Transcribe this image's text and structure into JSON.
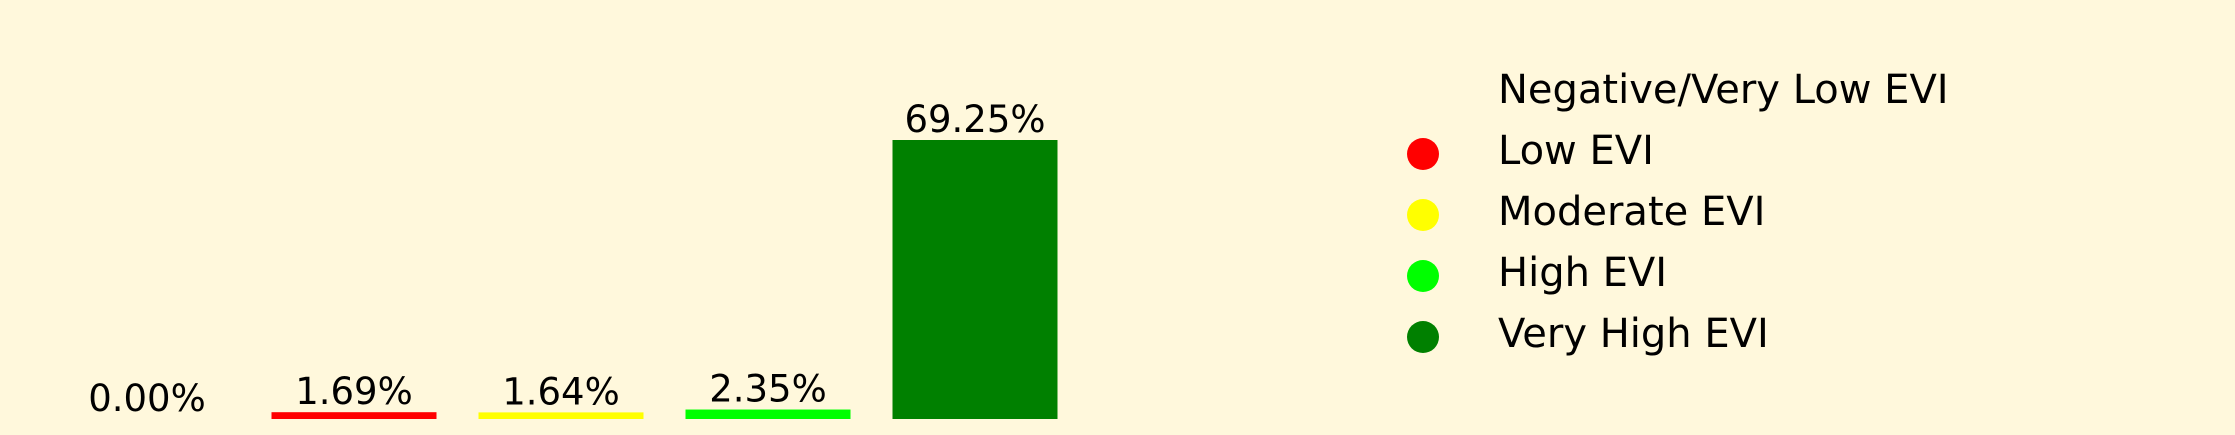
{
  "chart_data": {
    "type": "bar",
    "title": "",
    "xlabel": "",
    "ylabel": "",
    "ylim": [
      0,
      69.25
    ],
    "grid": false,
    "legend_placement": "right",
    "categories": [
      "Negative/Very Low EVI",
      "Low EVI",
      "Moderate EVI",
      "High EVI",
      "Very High EVI"
    ],
    "values": [
      0.0,
      1.69,
      1.64,
      2.35,
      69.25
    ],
    "value_labels": [
      "0.00%",
      "1.69%",
      "1.64%",
      "2.35%",
      "69.25%"
    ],
    "colors": [
      "#FFF8DC",
      "#FF0000",
      "#FFFF00",
      "#00FF00",
      "#008000"
    ],
    "legend": [
      {
        "label": "Negative/Very Low EVI",
        "color": "#FFF8DC"
      },
      {
        "label": "Low EVI",
        "color": "#FF0000"
      },
      {
        "label": "Moderate EVI",
        "color": "#FFFF00"
      },
      {
        "label": "High EVI",
        "color": "#00FF00"
      },
      {
        "label": "Very High EVI",
        "color": "#008000"
      }
    ],
    "background_color": "#FFF8DC"
  }
}
